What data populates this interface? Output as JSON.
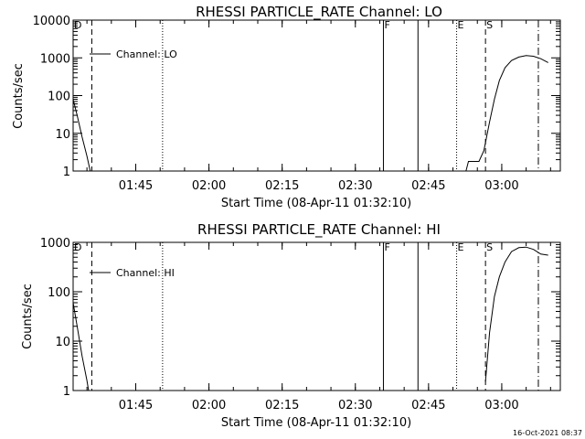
{
  "footer_date": "16-Oct-2021 08:37",
  "colors": {
    "background": "#ffffff",
    "foreground": "#000000"
  },
  "chart_data": [
    {
      "type": "line",
      "title": "RHESSI PARTICLE_RATE Channel: LO",
      "xlabel": "Start Time (08-Apr-11 01:32:10)",
      "ylabel": "Counts/sec",
      "yscale": "log",
      "xlim": [
        "01:32:10",
        "03:12:00"
      ],
      "ylim": [
        1,
        10000
      ],
      "x_ticks": [
        "01:45",
        "02:00",
        "02:15",
        "02:30",
        "02:45",
        "03:00"
      ],
      "y_ticks": [
        {
          "value": 1,
          "label": "1"
        },
        {
          "value": 10,
          "label": "10"
        },
        {
          "value": 100,
          "label": "100"
        },
        {
          "value": 1000,
          "label": "1000"
        },
        {
          "value": 10000,
          "label": "10000"
        }
      ],
      "legend": {
        "label": "Channel: LO",
        "position": "top-left"
      },
      "grid": false,
      "series": [
        {
          "name": "Channel: LO",
          "segments": [
            [
              [
                "01:32:10",
                80
              ],
              [
                "01:33:00",
                30
              ],
              [
                "01:34:00",
                8
              ],
              [
                "01:35:00",
                2.5
              ],
              [
                "01:35:40",
                1
              ]
            ],
            [
              [
                "02:52:40",
                1
              ],
              [
                "02:53:10",
                1.8
              ],
              [
                "02:54:10",
                1.8
              ],
              [
                "02:55:20",
                1.8
              ],
              [
                "02:56:20",
                3.5
              ],
              [
                "02:57:30",
                20
              ],
              [
                "02:58:30",
                80
              ],
              [
                "02:59:30",
                250
              ],
              [
                "03:00:40",
                550
              ],
              [
                "03:02:00",
                850
              ],
              [
                "03:03:30",
                1050
              ],
              [
                "03:05:00",
                1150
              ],
              [
                "03:06:30",
                1100
              ],
              [
                "03:08:00",
                950
              ],
              [
                "03:09:30",
                750
              ]
            ]
          ]
        }
      ],
      "markers": [
        {
          "time": "01:32:10",
          "label": "D",
          "style": "dashdot"
        },
        {
          "time": "01:36:00",
          "label": "",
          "style": "dashed"
        },
        {
          "time": "01:50:30",
          "label": "",
          "style": "dotted"
        },
        {
          "time": "02:35:45",
          "label": "F",
          "style": "solid"
        },
        {
          "time": "02:42:50",
          "label": "",
          "style": "solid"
        },
        {
          "time": "02:50:45",
          "label": "E",
          "style": "dotted"
        },
        {
          "time": "02:56:40",
          "label": "S",
          "style": "dashed"
        },
        {
          "time": "03:07:30",
          "label": "",
          "style": "dashdot"
        }
      ]
    },
    {
      "type": "line",
      "title": "RHESSI PARTICLE_RATE Channel: HI",
      "xlabel": "Start Time (08-Apr-11 01:32:10)",
      "ylabel": "Counts/sec",
      "yscale": "log",
      "xlim": [
        "01:32:10",
        "03:12:00"
      ],
      "ylim": [
        1,
        1000
      ],
      "x_ticks": [
        "01:45",
        "02:00",
        "02:15",
        "02:30",
        "02:45",
        "03:00"
      ],
      "y_ticks": [
        {
          "value": 1,
          "label": "1"
        },
        {
          "value": 10,
          "label": "10"
        },
        {
          "value": 100,
          "label": "100"
        },
        {
          "value": 1000,
          "label": "1000"
        }
      ],
      "legend": {
        "label": "Channel: HI",
        "position": "top-left"
      },
      "grid": false,
      "series": [
        {
          "name": "Channel: HI",
          "segments": [
            [
              [
                "01:32:10",
                60
              ],
              [
                "01:33:00",
                20
              ],
              [
                "01:34:00",
                5
              ],
              [
                "01:35:00",
                1.6
              ],
              [
                "01:35:20",
                1
              ]
            ],
            [
              [
                "02:56:40",
                1.5
              ],
              [
                "02:57:30",
                15
              ],
              [
                "02:58:30",
                80
              ],
              [
                "02:59:30",
                200
              ],
              [
                "03:00:40",
                400
              ],
              [
                "03:02:00",
                650
              ],
              [
                "03:03:30",
                780
              ],
              [
                "03:05:00",
                800
              ],
              [
                "03:06:30",
                720
              ],
              [
                "03:08:00",
                580
              ],
              [
                "03:09:30",
                550
              ]
            ]
          ]
        }
      ],
      "markers": [
        {
          "time": "01:32:10",
          "label": "D",
          "style": "dashdot"
        },
        {
          "time": "01:36:00",
          "label": "",
          "style": "dashed"
        },
        {
          "time": "01:50:30",
          "label": "",
          "style": "dotted"
        },
        {
          "time": "02:35:45",
          "label": "F",
          "style": "solid"
        },
        {
          "time": "02:42:50",
          "label": "",
          "style": "solid"
        },
        {
          "time": "02:50:45",
          "label": "E",
          "style": "dotted"
        },
        {
          "time": "02:56:40",
          "label": "S",
          "style": "dashed"
        },
        {
          "time": "03:07:30",
          "label": "",
          "style": "dashdot"
        }
      ]
    }
  ]
}
